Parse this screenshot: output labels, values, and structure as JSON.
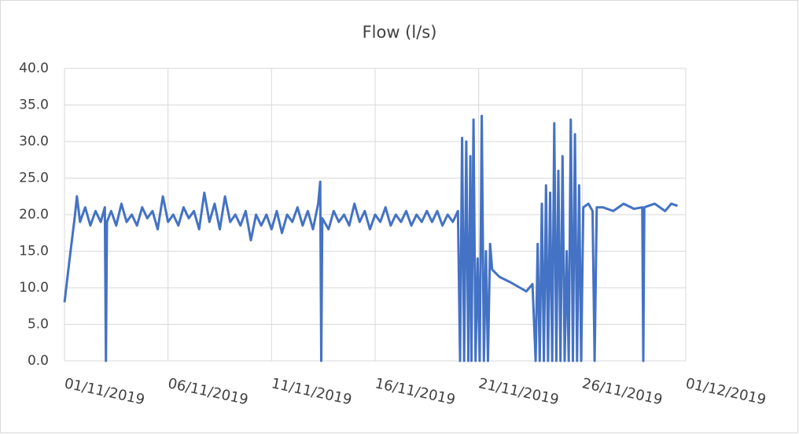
{
  "chart_data": {
    "type": "line",
    "title": "Flow (l/s)",
    "color": "#4472c4",
    "grid": true,
    "xlim": [
      43770,
      43800
    ],
    "xticks": [
      {
        "value": 43770,
        "label": "01/11/2019"
      },
      {
        "value": 43775,
        "label": "06/11/2019"
      },
      {
        "value": 43780,
        "label": "11/11/2019"
      },
      {
        "value": 43785,
        "label": "16/11/2019"
      },
      {
        "value": 43790,
        "label": "21/11/2019"
      },
      {
        "value": 43795,
        "label": "26/11/2019"
      },
      {
        "value": 43800,
        "label": "01/12/2019"
      }
    ],
    "ylim": [
      0,
      40
    ],
    "yticks": [
      {
        "value": 0,
        "label": "0.0"
      },
      {
        "value": 5,
        "label": "5.0"
      },
      {
        "value": 10,
        "label": "10.0"
      },
      {
        "value": 15,
        "label": "15.0"
      },
      {
        "value": 20,
        "label": "20.0"
      },
      {
        "value": 25,
        "label": "25.0"
      },
      {
        "value": 30,
        "label": "30.0"
      },
      {
        "value": 35,
        "label": "35.0"
      },
      {
        "value": 40,
        "label": "40.0"
      }
    ],
    "x": [
      43770,
      43770.25,
      43770.5,
      43770.6,
      43770.75,
      43771,
      43771.25,
      43771.5,
      43771.75,
      43771.95,
      43772,
      43772.05,
      43772.25,
      43772.5,
      43772.75,
      43773,
      43773.25,
      43773.5,
      43773.75,
      43774,
      43774.25,
      43774.5,
      43774.75,
      43775,
      43775.25,
      43775.5,
      43775.75,
      43776,
      43776.25,
      43776.5,
      43776.75,
      43777,
      43777.25,
      43777.5,
      43777.75,
      43778,
      43778.25,
      43778.5,
      43778.75,
      43779,
      43779.25,
      43779.5,
      43779.75,
      43780,
      43780.25,
      43780.5,
      43780.75,
      43781,
      43781.25,
      43781.5,
      43781.75,
      43782,
      43782.25,
      43782.35,
      43782.4,
      43782.45,
      43782.75,
      43783,
      43783.25,
      43783.5,
      43783.75,
      43784,
      43784.25,
      43784.5,
      43784.75,
      43785,
      43785.25,
      43785.5,
      43785.75,
      43786,
      43786.25,
      43786.5,
      43786.75,
      43787,
      43787.25,
      43787.5,
      43787.75,
      43788,
      43788.25,
      43788.5,
      43788.75,
      43789,
      43789.1,
      43789.2,
      43789.3,
      43789.4,
      43789.5,
      43789.6,
      43789.65,
      43789.75,
      43789.85,
      43789.95,
      43790.05,
      43790.15,
      43790.25,
      43790.35,
      43790.45,
      43790.55,
      43790.65,
      43791,
      43791.5,
      43792,
      43792.3,
      43792.6,
      43792.75,
      43792.85,
      43792.95,
      43793.05,
      43793.15,
      43793.25,
      43793.35,
      43793.45,
      43793.55,
      43793.65,
      43793.75,
      43793.85,
      43793.95,
      43794.05,
      43794.15,
      43794.25,
      43794.35,
      43794.45,
      43794.55,
      43794.65,
      43794.75,
      43794.85,
      43794.95,
      43795.05,
      43795.3,
      43795.5,
      43795.6,
      43795.7,
      43796,
      43796.5,
      43797,
      43797.5,
      43797.9,
      43797.95,
      43798,
      43798.5,
      43799,
      43799.3,
      43799.6
    ],
    "values": [
      8,
      14,
      19.8,
      22.5,
      19,
      21,
      18.5,
      20.5,
      19,
      21,
      0,
      19,
      20.5,
      18.5,
      21.5,
      19,
      20,
      18.5,
      21,
      19.5,
      20.5,
      18,
      22.5,
      19,
      20,
      18.5,
      21,
      19.5,
      20.5,
      18,
      23,
      19,
      21.5,
      18,
      22.5,
      19,
      20,
      18.5,
      20.5,
      16.5,
      20,
      18.5,
      20,
      18,
      20.5,
      17.5,
      20,
      19,
      21,
      18.5,
      20.5,
      18,
      21.5,
      24.5,
      0,
      19.5,
      18,
      20.5,
      19,
      20,
      18.5,
      21.5,
      19,
      20.5,
      18,
      20,
      19,
      21,
      18.5,
      20,
      19,
      20.5,
      18.5,
      20,
      19,
      20.5,
      19,
      20.5,
      18.5,
      20,
      19,
      20.5,
      0,
      30.5,
      0,
      30,
      0,
      28,
      0,
      33,
      0,
      14,
      0,
      33.5,
      0,
      15,
      0,
      16,
      12.5,
      11.5,
      10.8,
      10,
      9.5,
      10.5,
      0,
      16,
      0,
      21.5,
      0,
      24,
      0,
      23,
      0,
      32.5,
      0,
      26,
      0,
      28,
      0,
      15,
      0,
      33,
      0,
      31,
      0,
      24,
      0,
      21,
      21.5,
      20.5,
      0,
      21,
      21,
      20.5,
      21.5,
      20.8,
      21,
      0,
      21,
      21.5,
      20.5,
      21.5,
      21.2
    ]
  }
}
